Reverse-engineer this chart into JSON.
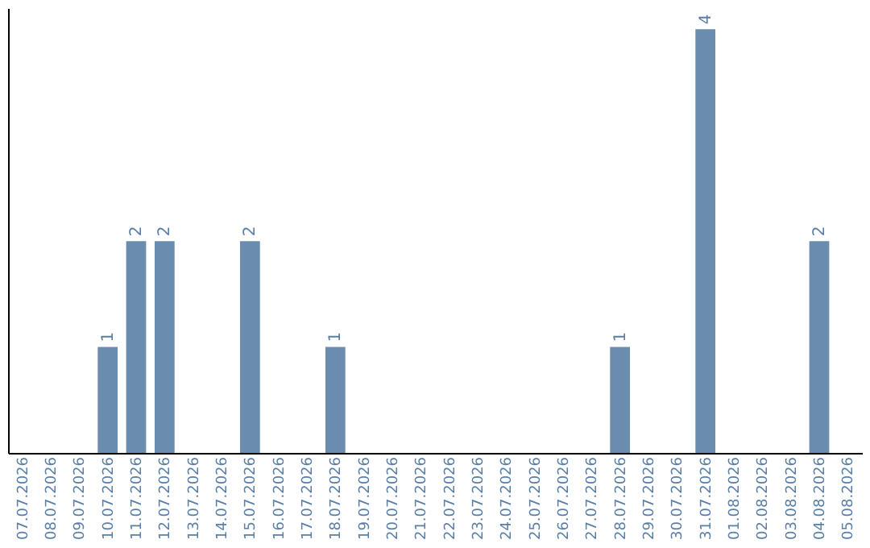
{
  "chart_data": {
    "type": "bar",
    "categories": [
      "07.07.2026",
      "08.07.2026",
      "09.07.2026",
      "10.07.2026",
      "11.07.2026",
      "12.07.2026",
      "13.07.2026",
      "14.07.2026",
      "15.07.2026",
      "16.07.2026",
      "17.07.2026",
      "18.07.2026",
      "19.07.2026",
      "20.07.2026",
      "21.07.2026",
      "22.07.2026",
      "23.07.2026",
      "24.07.2026",
      "25.07.2026",
      "26.07.2026",
      "27.07.2026",
      "28.07.2026",
      "29.07.2026",
      "30.07.2026",
      "31.07.2026",
      "01.08.2026",
      "02.08.2026",
      "03.08.2026",
      "04.08.2026",
      "05.08.2026"
    ],
    "values": [
      null,
      null,
      null,
      1,
      2,
      2,
      null,
      null,
      2,
      null,
      null,
      1,
      null,
      null,
      null,
      null,
      null,
      null,
      null,
      null,
      null,
      1,
      null,
      null,
      4,
      null,
      null,
      null,
      2,
      null
    ],
    "color": "#6a8caf",
    "data_labels": true,
    "grid": false,
    "tick_labels": "x"
  }
}
